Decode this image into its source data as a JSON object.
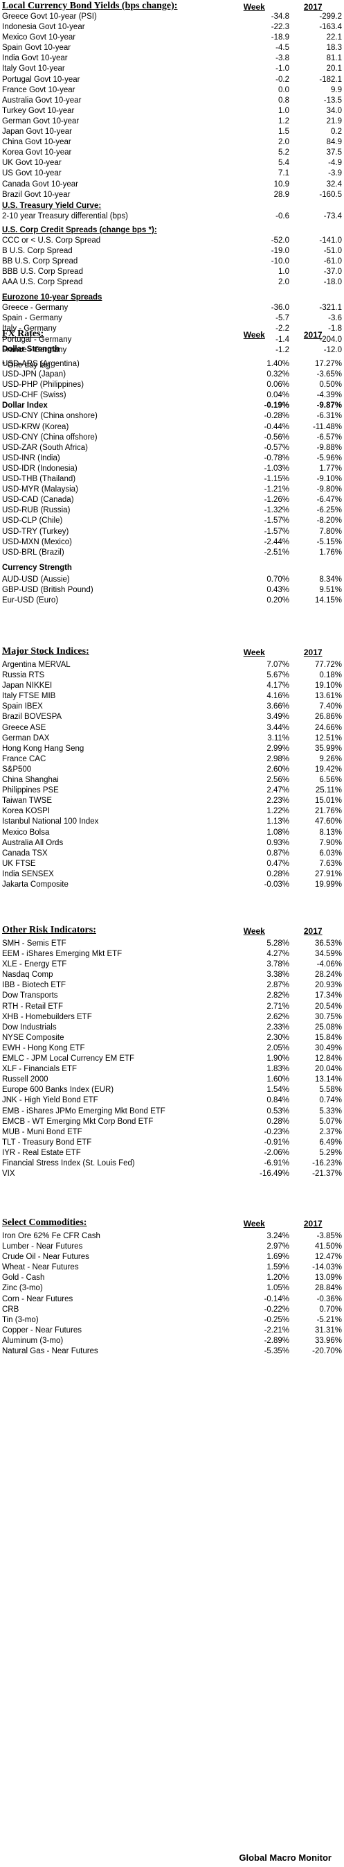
{
  "bond_yields": {
    "title": "Local Currency Bond Yields (bps change):",
    "col1": "Week",
    "col2": "2017",
    "rows": [
      {
        "label": "Greece Govt 10-year (PSI)",
        "week": "-34.8",
        "ytd": "-299.2"
      },
      {
        "label": "Indonesia Govt 10-year",
        "week": "-22.3",
        "ytd": "-163.4"
      },
      {
        "label": "Mexico Govt 10-year",
        "week": "-18.9",
        "ytd": "22.1"
      },
      {
        "label": "Spain Govt 10-year",
        "week": "-4.5",
        "ytd": "18.3"
      },
      {
        "label": "India Govt 10-year",
        "week": "-3.8",
        "ytd": "81.1"
      },
      {
        "label": "Italy Govt 10-year",
        "week": "-1.0",
        "ytd": "20.1"
      },
      {
        "label": "Portugal Govt 10-year",
        "week": "-0.2",
        "ytd": "-182.1"
      },
      {
        "label": "France Govt 10-year",
        "week": "0.0",
        "ytd": "9.9"
      },
      {
        "label": "Australia Govt 10-year",
        "week": "0.8",
        "ytd": "-13.5"
      },
      {
        "label": "Turkey Govt 10-year",
        "week": "1.0",
        "ytd": "34.0"
      },
      {
        "label": "German Govt 10-year",
        "week": "1.2",
        "ytd": "21.9"
      },
      {
        "label": "Japan Govt 10-year",
        "week": "1.5",
        "ytd": "0.2"
      },
      {
        "label": "China Govt 10-year",
        "week": "2.0",
        "ytd": "84.9"
      },
      {
        "label": "Korea Govt 10-year",
        "week": "5.2",
        "ytd": "37.5"
      },
      {
        "label": "UK Govt 10-year",
        "week": "5.4",
        "ytd": "-4.9"
      },
      {
        "label": "US Govt 10-year",
        "week": "7.1",
        "ytd": "-3.9"
      },
      {
        "label": "Canada Govt 10-year",
        "week": "10.9",
        "ytd": "32.4"
      },
      {
        "label": "Brazil Govt 10-year",
        "week": "28.9",
        "ytd": "-160.5"
      }
    ],
    "curve_title": "U.S. Treasury Yield Curve:",
    "curve_rows": [
      {
        "label": "2-10 year Treasury differential (bps)",
        "week": "-0.6",
        "ytd": "-73.4"
      }
    ],
    "credit_title": "U.S. Corp Credit Spreads (change bps *):",
    "credit_rows": [
      {
        "label": "CCC or < U.S. Corp Spread",
        "week": "-52.0",
        "ytd": "-141.0"
      },
      {
        "label": "B U.S. Corp Spread",
        "week": "-19.0",
        "ytd": "-51.0"
      },
      {
        "label": "BB U.S. Corp Spread",
        "week": "-10.0",
        "ytd": "-61.0"
      },
      {
        "label": "BBB U.S. Corp Spread",
        "week": "1.0",
        "ytd": "-37.0"
      },
      {
        "label": "AAA U.S. Corp Spread",
        "week": "2.0",
        "ytd": "-18.0"
      }
    ],
    "euro_title": "Eurozone 10-year Spreads",
    "euro_rows": [
      {
        "label": "Greece - Germany",
        "week": "-36.0",
        "ytd": "-321.1"
      },
      {
        "label": "Spain - Germany",
        "week": "-5.7",
        "ytd": "-3.6"
      },
      {
        "label": "Italy - Germany",
        "week": "-2.2",
        "ytd": "-1.8"
      },
      {
        "label": "Portugal - Germany",
        "week": "-1.4",
        "ytd": "-204.0"
      },
      {
        "label": "France - Germany",
        "week": "-1.2",
        "ytd": "-12.0"
      }
    ],
    "note": "* One day lag."
  },
  "fx": {
    "title": "FX Rates:",
    "col1": "Week",
    "col2": "2017",
    "strength_title": "Dollar Strength",
    "strength_rows": [
      {
        "label": "USD-ARS (Argentina)",
        "week": "1.40%",
        "ytd": "17.27%"
      },
      {
        "label": "USD-JPN (Japan)",
        "week": "0.32%",
        "ytd": "-3.65%"
      },
      {
        "label": "USD-PHP (Philippines)",
        "week": "0.06%",
        "ytd": "0.50%"
      },
      {
        "label": "USD-CHF (Swiss)",
        "week": "0.04%",
        "ytd": "-4.39%"
      },
      {
        "label": "Dollar Index",
        "week": "-0.19%",
        "ytd": "-9.87%",
        "bold": true
      },
      {
        "label": "USD-CNY (China onshore)",
        "week": "-0.28%",
        "ytd": "-6.31%"
      },
      {
        "label": "USD-KRW (Korea)",
        "week": "-0.44%",
        "ytd": "-11.48%"
      },
      {
        "label": "USD-CNY (China offshore)",
        "week": "-0.56%",
        "ytd": "-6.57%"
      },
      {
        "label": "USD-ZAR (South Africa)",
        "week": "-0.57%",
        "ytd": "-9.88%"
      },
      {
        "label": "USD-INR (India)",
        "week": "-0.78%",
        "ytd": "-5.96%"
      },
      {
        "label": "USD-IDR (Indonesia)",
        "week": "-1.03%",
        "ytd": "1.77%"
      },
      {
        "label": "USD-THB (Thailand)",
        "week": "-1.15%",
        "ytd": "-9.10%"
      },
      {
        "label": "USD-MYR (Malaysia)",
        "week": "-1.21%",
        "ytd": "-9.80%"
      },
      {
        "label": "USD-CAD (Canada)",
        "week": "-1.26%",
        "ytd": "-6.47%"
      },
      {
        "label": "USD-RUB (Russia)",
        "week": "-1.32%",
        "ytd": "-6.25%"
      },
      {
        "label": "USD-CLP (Chile)",
        "week": "-1.57%",
        "ytd": "-8.20%"
      },
      {
        "label": "USD-TRY (Turkey)",
        "week": "-1.57%",
        "ytd": "7.80%"
      },
      {
        "label": "USD-MXN (Mexico)",
        "week": "-2.44%",
        "ytd": "-5.15%"
      },
      {
        "label": "USD-BRL (Brazil)",
        "week": "-2.51%",
        "ytd": "1.76%"
      }
    ],
    "currency_title": "Currency Strength",
    "currency_rows": [
      {
        "label": "AUD-USD (Aussie)",
        "week": "0.70%",
        "ytd": "8.34%"
      },
      {
        "label": "GBP-USD (British Pound)",
        "week": "0.43%",
        "ytd": "9.51%"
      },
      {
        "label": "Eur-USD (Euro)",
        "week": "0.20%",
        "ytd": "14.15%"
      }
    ]
  },
  "stocks": {
    "title": "Major Stock Indices:",
    "col1": "Week",
    "col2": "2017",
    "rows": [
      {
        "label": "Argentina MERVAL",
        "week": "7.07%",
        "ytd": "77.72%"
      },
      {
        "label": "Russia RTS",
        "week": "5.67%",
        "ytd": "0.18%"
      },
      {
        "label": "Japan NIKKEI",
        "week": "4.17%",
        "ytd": "19.10%"
      },
      {
        "label": "Italy FTSE MIB",
        "week": "4.16%",
        "ytd": "13.61%"
      },
      {
        "label": "Spain IBEX",
        "week": "3.66%",
        "ytd": "7.40%"
      },
      {
        "label": "Brazil BOVESPA",
        "week": "3.49%",
        "ytd": "26.86%"
      },
      {
        "label": "Greece ASE",
        "week": "3.44%",
        "ytd": "24.66%"
      },
      {
        "label": "German DAX",
        "week": "3.11%",
        "ytd": "12.51%"
      },
      {
        "label": "Hong Kong Hang Seng",
        "week": "2.99%",
        "ytd": "35.99%"
      },
      {
        "label": "France CAC",
        "week": "2.98%",
        "ytd": "9.26%"
      },
      {
        "label": "S&P500",
        "week": "2.60%",
        "ytd": "19.42%"
      },
      {
        "label": "China Shanghai",
        "week": "2.56%",
        "ytd": "6.56%"
      },
      {
        "label": "Philippines PSE",
        "week": "2.47%",
        "ytd": "25.11%"
      },
      {
        "label": "Taiwan  TWSE",
        "week": "2.23%",
        "ytd": "15.01%"
      },
      {
        "label": "Korea KOSPI",
        "week": "1.22%",
        "ytd": "21.76%"
      },
      {
        "label": "Istanbul National 100 Index",
        "week": "1.13%",
        "ytd": "47.60%"
      },
      {
        "label": "Mexico Bolsa",
        "week": "1.08%",
        "ytd": "8.13%"
      },
      {
        "label": "Australia All Ords",
        "week": "0.93%",
        "ytd": "7.90%"
      },
      {
        "label": "Canada TSX",
        "week": "0.87%",
        "ytd": "6.03%"
      },
      {
        "label": "UK FTSE",
        "week": "0.47%",
        "ytd": "7.63%"
      },
      {
        "label": "India SENSEX",
        "week": "0.28%",
        "ytd": "27.91%"
      },
      {
        "label": "Jakarta Composite",
        "week": "-0.03%",
        "ytd": "19.99%"
      }
    ]
  },
  "risk": {
    "title": "Other Risk Indicators:",
    "col1": "Week",
    "col2": "2017",
    "rows": [
      {
        "label": "SMH - Semis ETF",
        "week": "5.28%",
        "ytd": "36.53%"
      },
      {
        "label": "EEM - iShares Emerging Mkt ETF",
        "week": "4.27%",
        "ytd": "34.59%"
      },
      {
        "label": "XLE - Energy ETF",
        "week": "3.78%",
        "ytd": "-4.06%"
      },
      {
        "label": "Nasdaq Comp",
        "week": "3.38%",
        "ytd": "28.24%"
      },
      {
        "label": "IBB - Biotech ETF",
        "week": "2.87%",
        "ytd": "20.93%"
      },
      {
        "label": "Dow Transports",
        "week": "2.82%",
        "ytd": "17.34%"
      },
      {
        "label": "RTH - Retail ETF",
        "week": "2.71%",
        "ytd": "20.54%"
      },
      {
        "label": "XHB - Homebuilders ETF",
        "week": "2.62%",
        "ytd": "30.75%"
      },
      {
        "label": "Dow Industrials",
        "week": "2.33%",
        "ytd": "25.08%"
      },
      {
        "label": "NYSE Composite",
        "week": "2.30%",
        "ytd": "15.84%"
      },
      {
        "label": "EWH - Hong Kong ETF",
        "week": "2.05%",
        "ytd": "30.49%"
      },
      {
        "label": "EMLC - JPM Local Currency EM ETF",
        "week": "1.90%",
        "ytd": "12.84%"
      },
      {
        "label": "XLF - Financials ETF",
        "week": "1.83%",
        "ytd": "20.04%"
      },
      {
        "label": "Russell 2000",
        "week": "1.60%",
        "ytd": "13.14%"
      },
      {
        "label": "Europe 600 Banks Index (EUR)",
        "week": "1.54%",
        "ytd": "5.58%"
      },
      {
        "label": "JNK - High Yield Bond ETF",
        "week": "0.84%",
        "ytd": "0.74%"
      },
      {
        "label": "EMB - iShares JPMo Emerging Mkt Bond ETF",
        "week": "0.53%",
        "ytd": "5.33%"
      },
      {
        "label": "EMCB - WT Emerging Mkt Corp Bond ETF",
        "week": "0.28%",
        "ytd": "5.07%"
      },
      {
        "label": "MUB - Muni Bond ETF",
        "week": "-0.23%",
        "ytd": "2.37%"
      },
      {
        "label": "TLT - Treasury Bond ETF",
        "week": "-0.91%",
        "ytd": "6.49%"
      },
      {
        "label": "IYR - Real Estate ETF",
        "week": "-2.06%",
        "ytd": "5.29%"
      },
      {
        "label": "Financial Stress Index (St. Louis Fed)",
        "week": "-6.91%",
        "ytd": "-16.23%"
      },
      {
        "label": "VIX",
        "week": "-16.49%",
        "ytd": "-21.37%"
      }
    ]
  },
  "commodities": {
    "title": "Select Commodities:",
    "col1": "Week",
    "col2": "2017",
    "rows": [
      {
        "label": "Iron Ore 62% Fe CFR Cash",
        "week": "3.24%",
        "ytd": "-3.85%"
      },
      {
        "label": "Lumber - Near Futures",
        "week": "2.97%",
        "ytd": "41.50%"
      },
      {
        "label": "Crude Oil - Near Futures",
        "week": "1.69%",
        "ytd": "12.47%"
      },
      {
        "label": "Wheat - Near Futures",
        "week": "1.59%",
        "ytd": "-14.03%"
      },
      {
        "label": "Gold - Cash",
        "week": "1.20%",
        "ytd": "13.09%"
      },
      {
        "label": "Zinc (3-mo)",
        "week": "1.05%",
        "ytd": "28.84%"
      },
      {
        "label": "Corn - Near Futures",
        "week": "-0.14%",
        "ytd": "-0.36%"
      },
      {
        "label": "CRB",
        "week": "-0.22%",
        "ytd": "0.70%"
      },
      {
        "label": "Tin (3-mo)",
        "week": "-0.25%",
        "ytd": "-5.21%"
      },
      {
        "label": "Copper - Near Futures",
        "week": "-2.21%",
        "ytd": "31.31%"
      },
      {
        "label": "Aluminum (3-mo)",
        "week": "-2.89%",
        "ytd": "33.96%"
      },
      {
        "label": "Natural Gas - Near Futures",
        "week": "-5.35%",
        "ytd": "-20.70%"
      }
    ]
  },
  "footer": "Global Macro Monitor"
}
